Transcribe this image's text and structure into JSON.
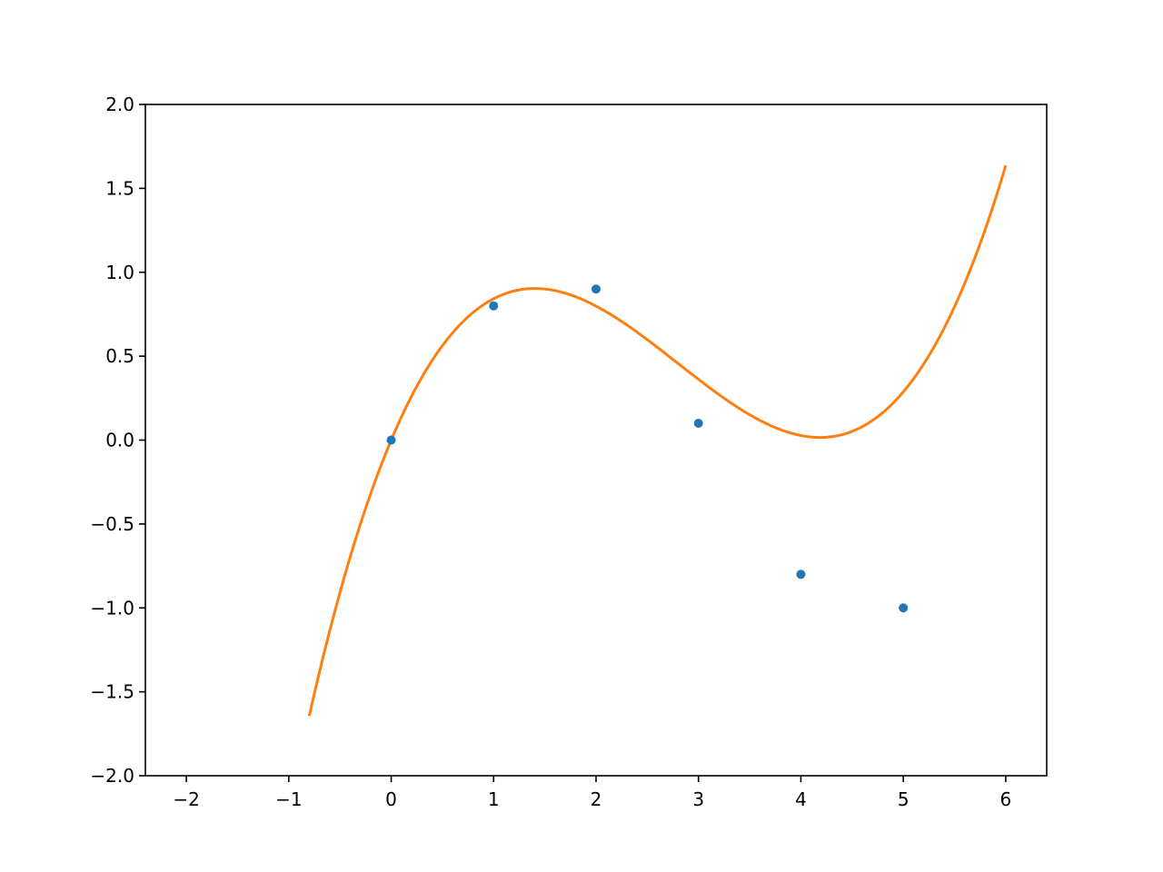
{
  "chart_data": {
    "type": "scatter",
    "xlim": [
      -2.4,
      6.4
    ],
    "ylim": [
      -2.0,
      2.0
    ],
    "grid": false,
    "x_ticks": [
      {
        "value": -2,
        "label": "−2"
      },
      {
        "value": -1,
        "label": "−1"
      },
      {
        "value": 0,
        "label": "0"
      },
      {
        "value": 1,
        "label": "1"
      },
      {
        "value": 2,
        "label": "2"
      },
      {
        "value": 3,
        "label": "3"
      },
      {
        "value": 4,
        "label": "4"
      },
      {
        "value": 5,
        "label": "5"
      },
      {
        "value": 6,
        "label": "6"
      }
    ],
    "y_ticks": [
      {
        "value": -2.0,
        "label": "−2.0"
      },
      {
        "value": -1.5,
        "label": "−1.5"
      },
      {
        "value": -1.0,
        "label": "−1.0"
      },
      {
        "value": -0.5,
        "label": "−0.5"
      },
      {
        "value": 0.0,
        "label": "0.0"
      },
      {
        "value": 0.5,
        "label": "0.5"
      },
      {
        "value": 1.0,
        "label": "1.0"
      },
      {
        "value": 1.5,
        "label": "1.5"
      },
      {
        "value": 2.0,
        "label": "2.0"
      }
    ],
    "series": [
      {
        "kind": "scatter",
        "color": "#1f77b4",
        "points": [
          {
            "x": 0,
            "y": 0.0
          },
          {
            "x": 1,
            "y": 0.8
          },
          {
            "x": 2,
            "y": 0.9
          },
          {
            "x": 3,
            "y": 0.1
          },
          {
            "x": 4,
            "y": -0.8
          },
          {
            "x": 5,
            "y": -1.0
          }
        ]
      },
      {
        "kind": "line",
        "color": "#ff7f0e",
        "x_range": [
          -0.8,
          6.0
        ],
        "cubic_coefficients": [
          0.0,
          1.45,
          -0.69,
          0.0823
        ]
      }
    ]
  }
}
